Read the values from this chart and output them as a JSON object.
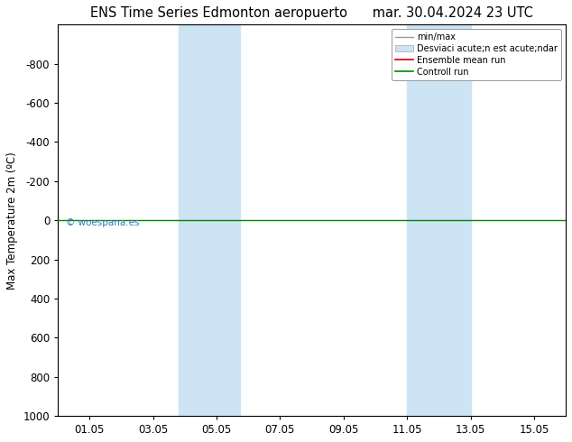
{
  "title_left": "ENS Time Series Edmonton aeropuerto",
  "title_right": "mar. 30.04.2024 23 UTC",
  "ylabel": "Max Temperature 2m (ºC)",
  "ylim_bottom": 1000,
  "ylim_top": -1000,
  "yticks": [
    -800,
    -600,
    -400,
    -200,
    0,
    200,
    400,
    600,
    800,
    1000
  ],
  "xtick_labels": [
    "01.05",
    "03.05",
    "05.05",
    "07.05",
    "09.05",
    "11.05",
    "13.05",
    "15.05"
  ],
  "xtick_positions": [
    1,
    3,
    5,
    7,
    9,
    11,
    13,
    15
  ],
  "shade_regions": [
    {
      "start": 3.8,
      "end": 4.8
    },
    {
      "start": 4.8,
      "end": 5.8
    },
    {
      "start": 11.0,
      "end": 12.0
    },
    {
      "start": 12.0,
      "end": 13.0
    }
  ],
  "shade_color": "#cde4f5",
  "green_line_y": 0,
  "green_line_color": "#008800",
  "watermark": "© woespana.es",
  "watermark_color": "#3377bb",
  "legend_labels": [
    "min/max",
    "Desviaci acute;n est acute;ndar",
    "Ensemble mean run",
    "Controll run"
  ],
  "legend_colors": [
    "#999999",
    "#c8ddef",
    "#cc0000",
    "#008800"
  ],
  "background_color": "#ffffff",
  "title_fontsize": 10.5,
  "tick_fontsize": 8.5,
  "ylabel_fontsize": 8.5,
  "xlim": [
    0,
    16
  ]
}
